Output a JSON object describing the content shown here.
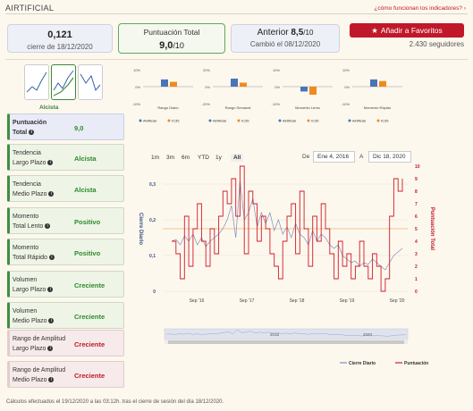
{
  "header": {
    "title": "AIRTIFICIAL",
    "help_link": "¿cómo funcionan los indicadores?",
    "help_arrow": "›"
  },
  "summary": {
    "close_value": "0,121",
    "close_label": "cierre de 18/12/2020",
    "total_label": "Puntuación Total",
    "total_value": "9,0",
    "total_scale": "/10",
    "prev_label": "Anterior",
    "prev_value": "8,5",
    "prev_scale": "/10",
    "prev_changed": "Cambió el 08/12/2020"
  },
  "favorites": {
    "button_label": "Añadir a Favoritos",
    "followers": "2.430 seguidores"
  },
  "trend_label": "Alcista",
  "indicators": [
    {
      "name": "Puntuación",
      "name2": "Total",
      "value": "9,0",
      "color": "green",
      "kind": "total"
    },
    {
      "name": "Tendencia",
      "name2": "Largo Plazo",
      "value": "Alcista",
      "color": "green"
    },
    {
      "name": "Tendencia",
      "name2": "Medio Plazo",
      "value": "Alcista",
      "color": "green"
    },
    {
      "name": "Momento",
      "name2": "Total Lento",
      "value": "Positivo",
      "color": "green"
    },
    {
      "name": "Momento",
      "name2": "Total Rápido",
      "value": "Positivo",
      "color": "green"
    },
    {
      "name": "Volumen",
      "name2": "Largo Plazo",
      "value": "Creciente",
      "color": "green"
    },
    {
      "name": "Volumen",
      "name2": "Medio Plazo",
      "value": "Creciente",
      "color": "green"
    },
    {
      "name": "Rango de Amplitud",
      "name2": "Largo Plazo",
      "value": "Creciente",
      "color": "red"
    },
    {
      "name": "Rango de Amplitud",
      "name2": "Medio Plazo",
      "value": "Creciente",
      "color": "red"
    }
  ],
  "mini_charts": [
    {
      "title": "Rango Diario",
      "left_ticks": [
        "10%",
        "0%",
        "-10%"
      ],
      "blue": 0.45,
      "orange": 0.3,
      "legend_a": "Airtificial",
      "legend_b": "IC35"
    },
    {
      "title": "Rango Semanal",
      "left_ticks": [
        "20%",
        "0%",
        "-20%"
      ],
      "blue": 0.5,
      "orange": 0.25,
      "legend_a": "Airtificial",
      "legend_b": "IC35"
    },
    {
      "title": "Momento Lento",
      "left_ticks": [
        "10%",
        "0%",
        "-10%"
      ],
      "blue": -0.3,
      "orange": -0.5,
      "legend_a": "Airtificial",
      "legend_b": "IC35"
    },
    {
      "title": "Momento Rápido",
      "left_ticks": [
        "10%",
        "0%",
        "-10%"
      ],
      "blue": 0.45,
      "orange": 0.35,
      "legend_a": "Airtificial",
      "legend_b": "IC35"
    }
  ],
  "range_buttons": [
    "1m",
    "3m",
    "6m",
    "YTD",
    "1y",
    "All"
  ],
  "range_active": "All",
  "date_from_label": "De",
  "date_from": "Ene 4, 2016",
  "date_to_label": "A",
  "date_to": "Dic 18, 2020",
  "navigator_labels": [
    "2018",
    "2020"
  ],
  "colors": {
    "accent_red": "#c0182a",
    "green": "#3f8f3f",
    "blue_line": "#7c8fb8",
    "score_red": "#d11a2a"
  },
  "chart_data": {
    "type": "line",
    "x_ticks": [
      "Sep '16",
      "Sep '17",
      "Sep '18",
      "Sep '19",
      "Sep '20"
    ],
    "y_left_label": "Cierre Diario",
    "y_left_ticks": [
      "0,3",
      "0,2",
      "0,1",
      "0"
    ],
    "y_left_range": [
      0,
      0.35
    ],
    "y_right_label": "Puntuación Total",
    "y_right_ticks": [
      "10",
      "9",
      "8",
      "7",
      "6",
      "5",
      "4",
      "3",
      "2",
      "1",
      "0"
    ],
    "y_right_range": [
      0,
      10
    ],
    "series": [
      {
        "name": "Cierre Diario",
        "axis": "left",
        "values": [
          0.14,
          0.145,
          0.13,
          0.155,
          0.14,
          0.16,
          0.13,
          0.15,
          0.125,
          0.14,
          0.15,
          0.16,
          0.175,
          0.2,
          0.24,
          0.15,
          0.31,
          0.2,
          0.22,
          0.26,
          0.18,
          0.22,
          0.19,
          0.22,
          0.17,
          0.2,
          0.16,
          0.18,
          0.15,
          0.19,
          0.16,
          0.15,
          0.13,
          0.17,
          0.14,
          0.16,
          0.15,
          0.13,
          0.12,
          0.13,
          0.1,
          0.09,
          0.08,
          0.085,
          0.07,
          0.08,
          0.075,
          0.09,
          0.08,
          0.07,
          0.06,
          0.08,
          0.1,
          0.11,
          0.12
        ]
      },
      {
        "name": "Puntuación",
        "axis": "right",
        "values": [
          4,
          3,
          1,
          6,
          2,
          5,
          7,
          4,
          2,
          5,
          3,
          6,
          8,
          7,
          9,
          6,
          10,
          3,
          8,
          7,
          4,
          6,
          5,
          3,
          2,
          1,
          4,
          6,
          7,
          3,
          8,
          5,
          2,
          6,
          4,
          7,
          5,
          3,
          1,
          4,
          2,
          3,
          1,
          2,
          4,
          2,
          1,
          3,
          2,
          0,
          1,
          6,
          9,
          8,
          9
        ]
      }
    ],
    "legend": [
      "Cierre Diario",
      "Puntuación"
    ],
    "reference_line_right": 5
  },
  "footer": "Cálculos efectuados el 19/12/2020 a las 03:12h. tras el cierre de sesión del día 18/12/2020."
}
